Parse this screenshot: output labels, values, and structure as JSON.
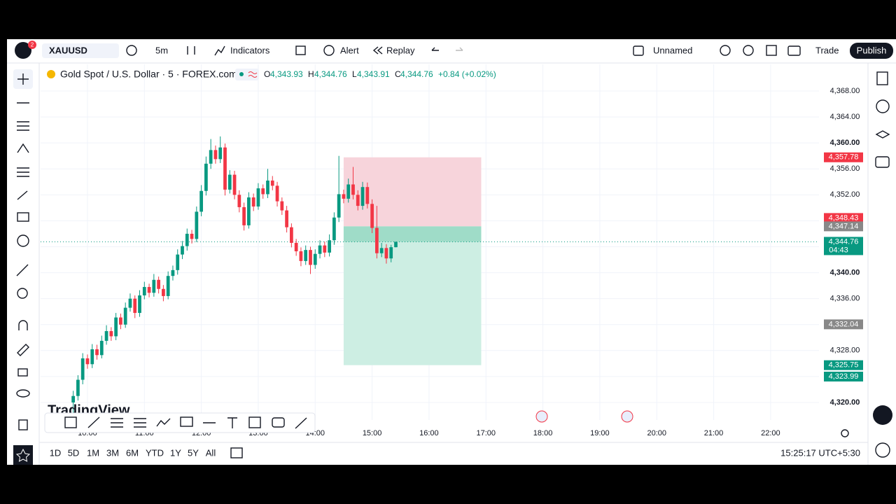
{
  "toolbar": {
    "symbol": "XAUUSD",
    "badge": "2",
    "interval": "5m",
    "indicators": "Indicators",
    "alert": "Alert",
    "replay": "Replay",
    "layout": "Unnamed",
    "trade": "Trade",
    "publish": "Publish"
  },
  "legend": {
    "title": "Gold Spot / U.S. Dollar · 5 · FOREX.com",
    "o_key": "O",
    "o": "4,343.93",
    "h_key": "H",
    "h": "4,344.76",
    "l_key": "L",
    "l": "4,343.91",
    "c_key": "C",
    "c": "4,344.76",
    "change": "+0.84 (+0.02%)"
  },
  "watermark": "TradingView",
  "chart_data": {
    "type": "candlestick",
    "grid": true,
    "up_color": "#089981",
    "down_color": "#f23645",
    "x": [
      585,
      590,
      595,
      600,
      605,
      610,
      615,
      620,
      625,
      630,
      635,
      640,
      645,
      650,
      655,
      660,
      665,
      670,
      675,
      680,
      685,
      690,
      695,
      700,
      705,
      710,
      715,
      720,
      725,
      730,
      735,
      740,
      745,
      750,
      755,
      760,
      765,
      770,
      775,
      780,
      785,
      790,
      795,
      800,
      805,
      810,
      815,
      820,
      825,
      830,
      835,
      840,
      845,
      850,
      855,
      860,
      865,
      870,
      875,
      880,
      885,
      890,
      895,
      900,
      905,
      910,
      915,
      920,
      925
    ],
    "open": [
      4320.0,
      4321.0,
      4323.5,
      4326.8,
      4325.9,
      4328.2,
      4327.3,
      4329.5,
      4331.0,
      4330.2,
      4333.1,
      4332.0,
      4334.6,
      4336.0,
      4333.8,
      4336.5,
      4337.8,
      4336.9,
      4338.9,
      4337.5,
      4336.4,
      4339.5,
      4340.4,
      4342.8,
      4344.1,
      4346.0,
      4345.2,
      4349.4,
      4352.6,
      4356.8,
      4358.9,
      4357.5,
      4359.3,
      4352.8,
      4355.1,
      4352.0,
      4350.1,
      4347.3,
      4351.6,
      4350.2,
      4353.0,
      4352.1,
      4354.2,
      4353.4,
      4351.0,
      4349.6,
      4347.0,
      4344.6,
      4343.3,
      4341.8,
      4343.5,
      4341.2,
      4342.9,
      4344.2,
      4343.1,
      4345.0,
      4348.5,
      4352.1,
      4351.4,
      4353.6,
      4352.0,
      4350.3,
      4353.2,
      4350.6,
      4346.9,
      4343.0,
      4343.8,
      4342.2,
      4343.93
    ],
    "high": [
      4321.8,
      4324.2,
      4327.6,
      4327.4,
      4329.0,
      4328.9,
      4330.3,
      4331.9,
      4331.6,
      4333.8,
      4333.7,
      4335.4,
      4336.8,
      4336.5,
      4337.3,
      4338.6,
      4338.3,
      4339.8,
      4339.4,
      4338.1,
      4340.2,
      4341.1,
      4343.6,
      4344.9,
      4346.8,
      4346.6,
      4350.2,
      4353.5,
      4357.9,
      4360.6,
      4359.6,
      4361.0,
      4359.9,
      4355.8,
      4355.7,
      4352.7,
      4350.8,
      4352.4,
      4352.2,
      4353.8,
      4353.6,
      4356.0,
      4354.9,
      4354.0,
      4351.6,
      4350.3,
      4347.6,
      4345.2,
      4343.9,
      4344.2,
      4344.0,
      4343.6,
      4345.0,
      4344.8,
      4345.9,
      4349.3,
      4358.0,
      4352.8,
      4354.5,
      4356.3,
      4352.7,
      4354.0,
      4353.9,
      4351.3,
      4350.3,
      4344.6,
      4344.4,
      4344.3,
      4344.76
    ],
    "low": [
      4318.4,
      4320.3,
      4322.8,
      4325.2,
      4325.3,
      4326.6,
      4326.8,
      4328.9,
      4329.5,
      4329.6,
      4331.3,
      4331.5,
      4334.0,
      4333.0,
      4333.2,
      4335.9,
      4336.2,
      4336.3,
      4336.8,
      4335.6,
      4335.9,
      4338.8,
      4339.7,
      4342.1,
      4343.4,
      4344.5,
      4344.7,
      4348.7,
      4351.9,
      4356.0,
      4356.8,
      4356.9,
      4351.9,
      4352.2,
      4351.3,
      4349.3,
      4346.5,
      4346.8,
      4349.5,
      4349.7,
      4351.4,
      4351.5,
      4352.7,
      4350.2,
      4348.9,
      4346.2,
      4343.9,
      4342.6,
      4341.0,
      4341.2,
      4339.8,
      4340.6,
      4342.2,
      4342.4,
      4342.5,
      4344.3,
      4347.8,
      4350.7,
      4350.8,
      4351.3,
      4349.6,
      4349.7,
      4349.9,
      4346.1,
      4342.2,
      4342.4,
      4341.4,
      4341.6,
      4343.91
    ],
    "close": [
      4321.0,
      4323.5,
      4326.8,
      4325.9,
      4328.2,
      4327.3,
      4329.5,
      4331.0,
      4330.2,
      4333.1,
      4332.0,
      4334.6,
      4336.0,
      4333.8,
      4336.5,
      4337.8,
      4336.9,
      4338.9,
      4337.5,
      4336.4,
      4339.5,
      4340.4,
      4342.8,
      4344.1,
      4346.0,
      4345.2,
      4349.4,
      4352.6,
      4356.8,
      4358.9,
      4357.5,
      4359.3,
      4352.8,
      4355.1,
      4352.0,
      4350.1,
      4347.3,
      4351.6,
      4350.2,
      4353.0,
      4352.1,
      4354.2,
      4353.4,
      4351.0,
      4349.6,
      4347.0,
      4344.6,
      4343.3,
      4341.8,
      4343.5,
      4341.2,
      4342.9,
      4344.2,
      4343.1,
      4345.0,
      4348.5,
      4352.1,
      4351.4,
      4353.6,
      4352.0,
      4350.3,
      4353.2,
      4350.6,
      4346.9,
      4343.0,
      4343.8,
      4342.2,
      4343.93,
      4344.76
    ],
    "xlim": [
      550.6,
      1371
    ],
    "xticks": [
      {
        "value": 600,
        "label": "10:00"
      },
      {
        "value": 660,
        "label": "11:00"
      },
      {
        "value": 720,
        "label": "12:00"
      },
      {
        "value": 780,
        "label": "13:00"
      },
      {
        "value": 840,
        "label": "14:00"
      },
      {
        "value": 900,
        "label": "15:00"
      },
      {
        "value": 960,
        "label": "16:00"
      },
      {
        "value": 1020,
        "label": "17:00"
      },
      {
        "value": 1080,
        "label": "18:00"
      },
      {
        "value": 1140,
        "label": "19:00"
      },
      {
        "value": 1200,
        "label": "20:00"
      },
      {
        "value": 1260,
        "label": "21:00"
      },
      {
        "value": 1320,
        "label": "22:00"
      }
    ],
    "ylim": [
      4317.3,
      4372.1
    ],
    "yticks": [
      {
        "value": 4320,
        "label": "4,320.00"
      },
      {
        "value": 4324,
        "label": "4,324.00"
      },
      {
        "value": 4328,
        "label": "4,328.00"
      },
      {
        "value": 4332,
        "label": "4,332.00"
      },
      {
        "value": 4336,
        "label": "4,336.00"
      },
      {
        "value": 4340,
        "label": "4,340.00"
      },
      {
        "value": 4344,
        "label": "4,344.00"
      },
      {
        "value": 4348,
        "label": "4,348.00"
      },
      {
        "value": 4352,
        "label": "4,352.00"
      },
      {
        "value": 4356,
        "label": "4,356.00"
      },
      {
        "value": 4360,
        "label": "4,360.00"
      },
      {
        "value": 4364,
        "label": "4,364.00"
      },
      {
        "value": 4368,
        "label": "4,368.00"
      }
    ],
    "position": {
      "x": [
        870,
        1015
      ],
      "stop": 4357.78,
      "entry": 4347.14,
      "target": 4325.75,
      "last": 4344.76,
      "stop_color": "#f7d4db",
      "target_color": "#cdeee3",
      "profit_color": "#9fdcc8"
    },
    "price_labels": [
      {
        "value": 4357.78,
        "label": "4,357.78",
        "color": "#f23645"
      },
      {
        "value": 4348.43,
        "label": "4,348.43",
        "color": "#f23645"
      },
      {
        "value": 4347.14,
        "label": "4,347.14",
        "color": "#888888"
      },
      {
        "value": 4344.76,
        "label": "4,344.76",
        "color": "#089981",
        "countdown": "04:43"
      },
      {
        "value": 4332.04,
        "label": "4,332.04",
        "color": "#888888"
      },
      {
        "value": 4325.75,
        "label": "4,325.75",
        "color": "#089981"
      },
      {
        "value": 4323.99,
        "label": "4,323.99",
        "color": "#089981"
      }
    ]
  },
  "bottom": {
    "ranges": [
      "1D",
      "5D",
      "1M",
      "3M",
      "6M",
      "YTD",
      "1Y",
      "5Y",
      "All"
    ],
    "clock": "15:25:17 UTC+5:30"
  }
}
